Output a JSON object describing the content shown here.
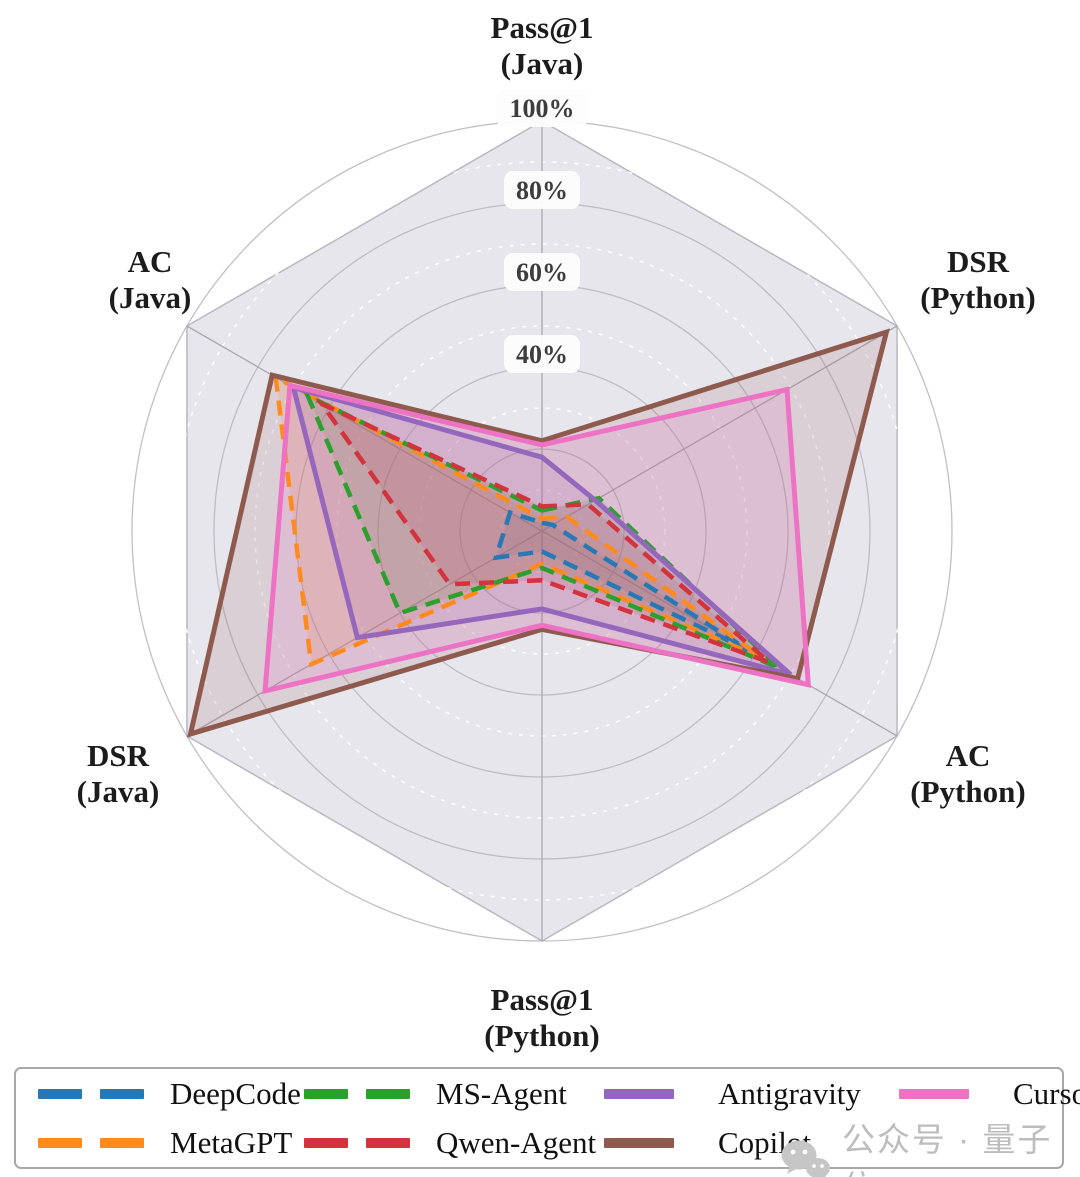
{
  "chart_data": {
    "type": "radar",
    "axes": [
      {
        "id": "pass1-java",
        "label_lines": [
          "Pass@1",
          "(Java)"
        ]
      },
      {
        "id": "dsr-python",
        "label_lines": [
          "DSR",
          "(Python)"
        ]
      },
      {
        "id": "ac-python",
        "label_lines": [
          "AC",
          "(Python)"
        ]
      },
      {
        "id": "pass1-python",
        "label_lines": [
          "Pass@1",
          "(Python)"
        ]
      },
      {
        "id": "dsr-java",
        "label_lines": [
          "DSR",
          "(Java)"
        ]
      },
      {
        "id": "ac-java",
        "label_lines": [
          "AC",
          "(Java)"
        ]
      }
    ],
    "r_ticks": [
      {
        "label": "40%",
        "value": 40
      },
      {
        "label": "60%",
        "value": 60
      },
      {
        "label": "80%",
        "value": 80
      },
      {
        "label": "100%",
        "value": 100
      }
    ],
    "r_max": 100,
    "series": [
      {
        "name": "DeepCode",
        "color": "#2878b5",
        "dashed": true,
        "values": [
          2,
          3,
          58,
          5,
          13,
          9
        ]
      },
      {
        "name": "MetaGPT",
        "color": "#ff8b1f",
        "dashed": true,
        "values": [
          3,
          7,
          62,
          8,
          65,
          75
        ]
      },
      {
        "name": "MS-Agent",
        "color": "#2ca02c",
        "dashed": true,
        "values": [
          5,
          16,
          67,
          9,
          40,
          66
        ]
      },
      {
        "name": "Qwen-Agent",
        "color": "#d2333c",
        "dashed": true,
        "values": [
          6,
          13,
          64,
          12,
          26,
          62
        ]
      },
      {
        "name": "Antigravity",
        "color": "#9467bd",
        "dashed": false,
        "values": [
          18,
          15,
          70,
          19,
          52,
          70
        ]
      },
      {
        "name": "Copilot",
        "color": "#8f5a4e",
        "dashed": false,
        "values": [
          22,
          97,
          72,
          24,
          99,
          76
        ]
      },
      {
        "name": "Cursor",
        "color": "#ee72c4",
        "dashed": false,
        "values": [
          21,
          69,
          75,
          23,
          78,
          71
        ]
      }
    ],
    "legend_rows": [
      [
        0,
        2,
        4,
        6
      ],
      [
        1,
        3,
        5
      ]
    ],
    "grid": {
      "bg_fill": "#e8e6ed",
      "bg_edge": "#b9b7c0",
      "circle_color": "#b6b4bd",
      "minor_circle_color": "#ffffff",
      "spoke_color": "#a9a7b1",
      "fill_opacity": 0.16
    }
  },
  "watermark": {
    "icon": "wechat-icon",
    "text": "公众号 · 量子位"
  }
}
